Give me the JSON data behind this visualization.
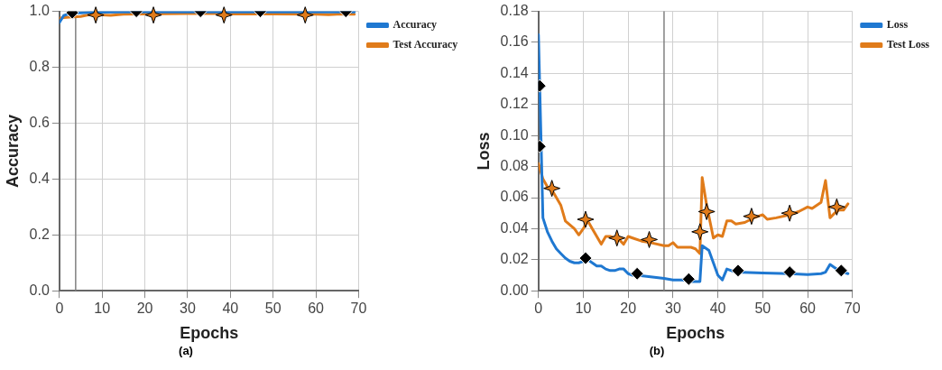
{
  "chart_data": [
    {
      "type": "line",
      "xlabel": "Epochs",
      "ylabel": "Accuracy",
      "annotations": [
        "(a)"
      ],
      "xlim": [
        0,
        70
      ],
      "xticks": [
        0,
        10,
        20,
        30,
        40,
        50,
        60,
        70
      ],
      "ylim": [
        0,
        1
      ],
      "yticks": [
        {
          "value": 0,
          "label": "0.0"
        },
        0.2,
        0.4,
        0.6,
        0.8,
        {
          "value": 1,
          "label": "1.0"
        }
      ],
      "grid": true,
      "legend": "top right",
      "ref_lines": [
        {
          "axis": "x",
          "value": 3.8,
          "color": "#808080"
        }
      ],
      "series": [
        {
          "name": "Accuracy",
          "color": "#1f78d1",
          "marker": "none",
          "x": [
            0,
            1,
            2,
            3,
            5,
            8,
            10,
            15,
            20,
            30,
            35,
            40,
            50,
            60,
            65,
            69
          ],
          "values": [
            0.96,
            0.985,
            0.99,
            0.993,
            0.995,
            0.997,
            0.997,
            0.998,
            0.998,
            0.998,
            0.998,
            0.998,
            0.998,
            0.998,
            0.998,
            0.998
          ]
        },
        {
          "name": "Test Accuracy",
          "color": "#e07b1a",
          "marker": "none",
          "x": [
            0,
            1,
            3,
            5,
            7,
            10,
            12,
            15,
            20,
            30,
            35,
            40,
            50,
            60,
            63,
            65,
            69
          ],
          "values": [
            0.975,
            0.978,
            0.98,
            0.982,
            0.988,
            0.987,
            0.986,
            0.99,
            0.991,
            0.992,
            0.993,
            0.991,
            0.991,
            0.99,
            0.988,
            0.99,
            0.99
          ]
        },
        {
          "type": "scatter",
          "color": "#000000",
          "marker": "diamond",
          "x": [
            3,
            18,
            33,
            47,
            67
          ],
          "values": [
            0.995,
            1.0,
            1.0,
            1.0,
            1.0
          ]
        },
        {
          "type": "scatter",
          "color": "#e07b1a",
          "marker": "star",
          "x": [
            8.5,
            22,
            38.5,
            57.5
          ],
          "values": [
            0.987,
            0.987,
            0.987,
            0.987
          ]
        }
      ]
    },
    {
      "type": "line",
      "xlabel": "Epochs",
      "ylabel": "Loss",
      "annotations": [
        "(b)"
      ],
      "xlim": [
        0,
        70
      ],
      "xticks": [
        0,
        10,
        20,
        30,
        40,
        50,
        60,
        70
      ],
      "ylim": [
        0,
        0.18
      ],
      "yticks": [
        {
          "value": 0,
          "label": "0.00"
        },
        {
          "value": 0.02,
          "label": "0.02"
        },
        {
          "value": 0.04,
          "label": "0.04"
        },
        {
          "value": 0.06,
          "label": "0.06"
        },
        {
          "value": 0.08,
          "label": "0.08"
        },
        {
          "value": 0.1,
          "label": "0.10"
        },
        {
          "value": 0.12,
          "label": "0.12"
        },
        {
          "value": 0.14,
          "label": "0.14"
        },
        {
          "value": 0.16,
          "label": "0.16"
        },
        {
          "value": 0.18,
          "label": "0.18"
        }
      ],
      "grid": true,
      "legend": "top right",
      "ref_lines": [
        {
          "axis": "x",
          "value": 28,
          "color": "#808080"
        }
      ],
      "series": [
        {
          "name": "Loss",
          "color": "#1f78d1",
          "marker": "none",
          "x": [
            0,
            0.3,
            1,
            2,
            3,
            4,
            5,
            6,
            7,
            8,
            9,
            10,
            11,
            12,
            13,
            14,
            15,
            16,
            17,
            18,
            19,
            20,
            21,
            22,
            25,
            28,
            30,
            33,
            34,
            36,
            36.5,
            38,
            39,
            40,
            41,
            42,
            43,
            44,
            50,
            56,
            60,
            63,
            64,
            65,
            66,
            67,
            69
          ],
          "values": [
            0.165,
            0.13,
            0.047,
            0.038,
            0.032,
            0.027,
            0.024,
            0.021,
            0.019,
            0.018,
            0.018,
            0.019,
            0.02,
            0.018,
            0.016,
            0.016,
            0.014,
            0.013,
            0.013,
            0.014,
            0.014,
            0.011,
            0.01,
            0.01,
            0.009,
            0.008,
            0.007,
            0.007,
            0.006,
            0.006,
            0.029,
            0.026,
            0.018,
            0.01,
            0.007,
            0.014,
            0.013,
            0.012,
            0.0115,
            0.011,
            0.0105,
            0.011,
            0.012,
            0.017,
            0.015,
            0.013,
            0.011
          ]
        },
        {
          "name": "Test Loss",
          "color": "#e07b1a",
          "marker": "none",
          "x": [
            0,
            1,
            2,
            3,
            5,
            6,
            8,
            9,
            10,
            11,
            12,
            14,
            15,
            16,
            17,
            18,
            19,
            20,
            21,
            23,
            25,
            28,
            29,
            30,
            31,
            34,
            35,
            36,
            36.5,
            37.5,
            39,
            40,
            41,
            42,
            43,
            44,
            46,
            48,
            50,
            51,
            53,
            56,
            58,
            60,
            61,
            63,
            64,
            65,
            66,
            67,
            68,
            69
          ],
          "values": [
            0.082,
            0.072,
            0.067,
            0.065,
            0.055,
            0.045,
            0.04,
            0.036,
            0.04,
            0.045,
            0.04,
            0.03,
            0.035,
            0.035,
            0.034,
            0.033,
            0.03,
            0.035,
            0.034,
            0.032,
            0.031,
            0.029,
            0.029,
            0.031,
            0.028,
            0.028,
            0.027,
            0.024,
            0.073,
            0.055,
            0.034,
            0.036,
            0.035,
            0.045,
            0.045,
            0.043,
            0.044,
            0.047,
            0.049,
            0.046,
            0.047,
            0.049,
            0.051,
            0.054,
            0.053,
            0.057,
            0.071,
            0.047,
            0.05,
            0.052,
            0.052,
            0.056
          ]
        },
        {
          "type": "scatter",
          "color": "#000000",
          "marker": "diamond",
          "x": [
            0.3,
            0.3,
            10.5,
            22,
            33.5,
            44.5,
            56,
            67.5
          ],
          "values": [
            0.132,
            0.093,
            0.021,
            0.011,
            0.0075,
            0.013,
            0.012,
            0.013
          ]
        },
        {
          "type": "scatter",
          "color": "#e07b1a",
          "marker": "star",
          "x": [
            3,
            10.5,
            17.5,
            24.7,
            36,
            37.5,
            47.5,
            56,
            66.5
          ],
          "values": [
            0.066,
            0.046,
            0.034,
            0.033,
            0.038,
            0.051,
            0.048,
            0.05,
            0.054
          ]
        }
      ]
    }
  ]
}
